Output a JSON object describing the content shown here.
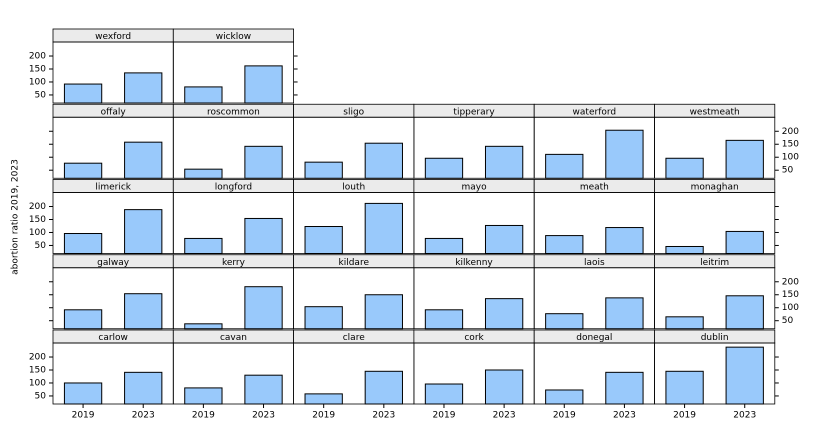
{
  "chart_data": {
    "type": "bar",
    "ylabel": "abortion ratio 2019, 2023",
    "categories": [
      "2019",
      "2023"
    ],
    "color": "#99c9fb",
    "ylim": [
      19,
      254
    ],
    "yticks": [
      50,
      100,
      150,
      200
    ],
    "panels": [
      {
        "name": "carlow",
        "values": [
          100,
          141
        ]
      },
      {
        "name": "cavan",
        "values": [
          81,
          130
        ]
      },
      {
        "name": "clare",
        "values": [
          58,
          145
        ]
      },
      {
        "name": "cork",
        "values": [
          96,
          150
        ]
      },
      {
        "name": "donegal",
        "values": [
          73,
          141
        ]
      },
      {
        "name": "dublin",
        "values": [
          145,
          238
        ]
      },
      {
        "name": "galway",
        "values": [
          92,
          154
        ]
      },
      {
        "name": "kerry",
        "values": [
          38,
          181
        ]
      },
      {
        "name": "kildare",
        "values": [
          104,
          150
        ]
      },
      {
        "name": "kilkenny",
        "values": [
          92,
          135
        ]
      },
      {
        "name": "laois",
        "values": [
          77,
          138
        ]
      },
      {
        "name": "leitrim",
        "values": [
          65,
          146
        ]
      },
      {
        "name": "limerick",
        "values": [
          96,
          188
        ]
      },
      {
        "name": "longford",
        "values": [
          77,
          154
        ]
      },
      {
        "name": "louth",
        "values": [
          123,
          212
        ]
      },
      {
        "name": "mayo",
        "values": [
          77,
          127
        ]
      },
      {
        "name": "meath",
        "values": [
          88,
          119
        ]
      },
      {
        "name": "monaghan",
        "values": [
          46,
          104
        ]
      },
      {
        "name": "offaly",
        "values": [
          77,
          158
        ]
      },
      {
        "name": "roscommon",
        "values": [
          54,
          142
        ]
      },
      {
        "name": "sligo",
        "values": [
          81,
          154
        ]
      },
      {
        "name": "tipperary",
        "values": [
          96,
          142
        ]
      },
      {
        "name": "waterford",
        "values": [
          111,
          204
        ]
      },
      {
        "name": "westmeath",
        "values": [
          96,
          165
        ]
      },
      {
        "name": "wexford",
        "values": [
          92,
          135
        ]
      },
      {
        "name": "wicklow",
        "values": [
          81,
          162
        ]
      }
    ]
  }
}
